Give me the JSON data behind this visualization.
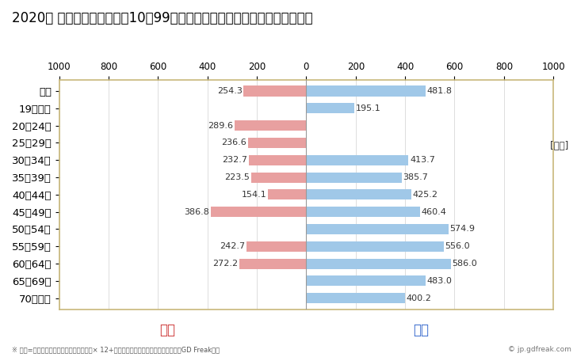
{
  "title": "2020年 民間企業（従業者数10～99人）フルタイム労働者の男女別平均年収",
  "footnote": "※ 年収=」きまって支給する現金給与額「× 12+」年間賞与その他特別給与額「としてGD Freak推計",
  "watermark": "© jp.gdfreak.com",
  "unit_label": "[万円]",
  "female_label": "女性",
  "male_label": "男性",
  "categories": [
    "全体",
    "19歳以下",
    "20～24歳",
    "25～29歳",
    "30～34歳",
    "35～39歳",
    "40～44歳",
    "45～49歳",
    "50～54歳",
    "55～59歳",
    "60～64歳",
    "65～69歳",
    "70歳以上"
  ],
  "female_values": [
    254.3,
    0,
    289.6,
    236.6,
    232.7,
    223.5,
    154.1,
    386.8,
    0,
    242.7,
    272.2,
    0,
    0
  ],
  "male_values": [
    481.8,
    195.1,
    0,
    0,
    413.7,
    385.7,
    425.2,
    460.4,
    574.9,
    556.0,
    586.0,
    483.0,
    400.2
  ],
  "female_color": "#e8a0a0",
  "male_color": "#a0c8e8",
  "female_label_color": "#cc3333",
  "male_label_color": "#3366cc",
  "axis_color": "#c8b87a",
  "background_color": "#ffffff",
  "plot_bg_color": "#ffffff",
  "xlim": [
    -1000,
    1000
  ],
  "xticks": [
    -1000,
    -800,
    -600,
    -400,
    -200,
    0,
    200,
    400,
    600,
    800,
    1000
  ],
  "xtick_labels": [
    "1000",
    "800",
    "600",
    "400",
    "200",
    "0",
    "200",
    "400",
    "600",
    "800",
    "1000"
  ],
  "title_fontsize": 12,
  "tick_fontsize": 8.5,
  "label_fontsize": 9.5,
  "bar_height": 0.6,
  "value_fontsize": 8
}
